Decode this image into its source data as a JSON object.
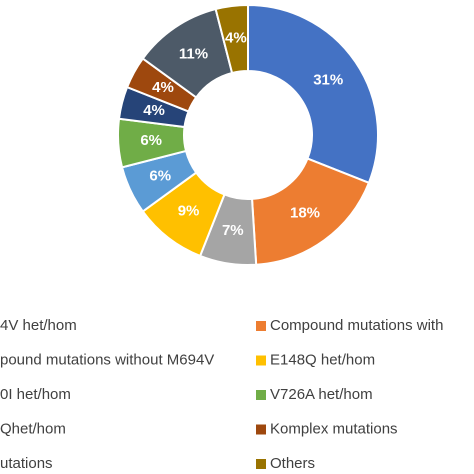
{
  "chart_data": {
    "type": "pie",
    "donut": true,
    "categories": [
      "4V het/hom",
      "Compound mutations with",
      "pound mutations without M694V",
      "E148Q het/hom",
      "0I het/hom",
      "V726A het/hom",
      "Qhet/hom",
      "Komplex mutations",
      "utations",
      "Others"
    ],
    "values": [
      31,
      18,
      7,
      9,
      6,
      6,
      4,
      4,
      11,
      4
    ],
    "value_labels": [
      "31%",
      "18%",
      "7%",
      "9%",
      "6%",
      "6%",
      "4%",
      "4%",
      "11%",
      "4%"
    ],
    "colors": [
      "#4472c4",
      "#ed7d31",
      "#a5a5a5",
      "#ffc000",
      "#5b9bd5",
      "#70ad47",
      "#264478",
      "#9e480e",
      "#4d5a68",
      "#997300"
    ]
  }
}
